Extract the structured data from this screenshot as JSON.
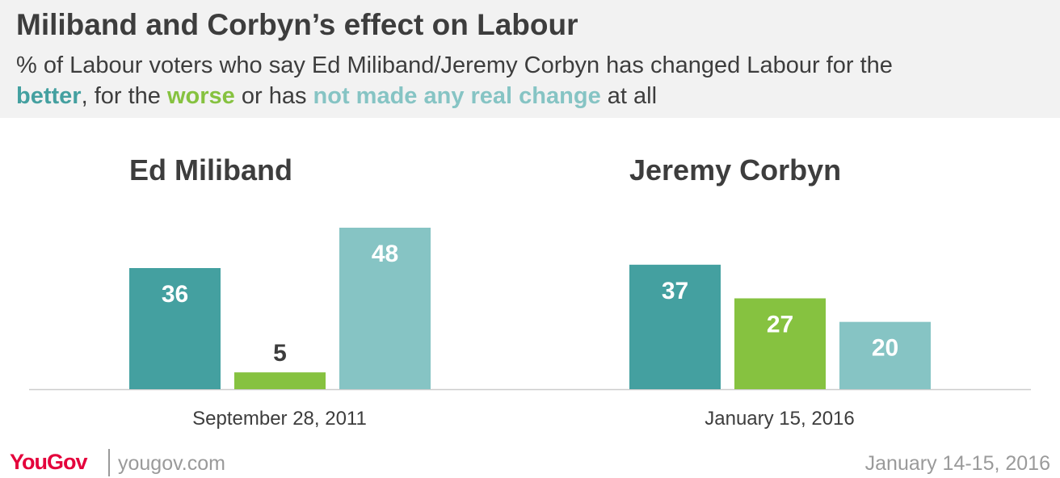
{
  "header": {
    "title": "Miliband and Corbyn’s effect on Labour",
    "subtitle_part1": "% of Labour voters who say Ed Miliband/Jeremy Corbyn has changed Labour for the",
    "key_better": "better",
    "subtitle_part2": ", for the",
    "key_worse": "worse",
    "subtitle_part3": "or has",
    "key_nochange": "not made any real change",
    "subtitle_part4": "at all"
  },
  "colors": {
    "better": "#44a0a0",
    "worse": "#86c240",
    "no_change": "#86c4c4"
  },
  "chart_data": [
    {
      "type": "bar",
      "title": "Ed Miliband",
      "xlabel": "September 28, 2011",
      "categories": [
        "better",
        "worse",
        "not made any real change"
      ],
      "values": [
        36,
        5,
        48
      ],
      "ylim": [
        0,
        48
      ]
    },
    {
      "type": "bar",
      "title": "Jeremy Corbyn",
      "xlabel": "January 15, 2016",
      "categories": [
        "better",
        "worse",
        "not made any real change"
      ],
      "values": [
        37,
        27,
        20
      ],
      "ylim": [
        0,
        48
      ]
    }
  ],
  "footer": {
    "brand": "YouGov",
    "site": "yougov.com",
    "fieldwork": "January 14-15, 2016"
  }
}
